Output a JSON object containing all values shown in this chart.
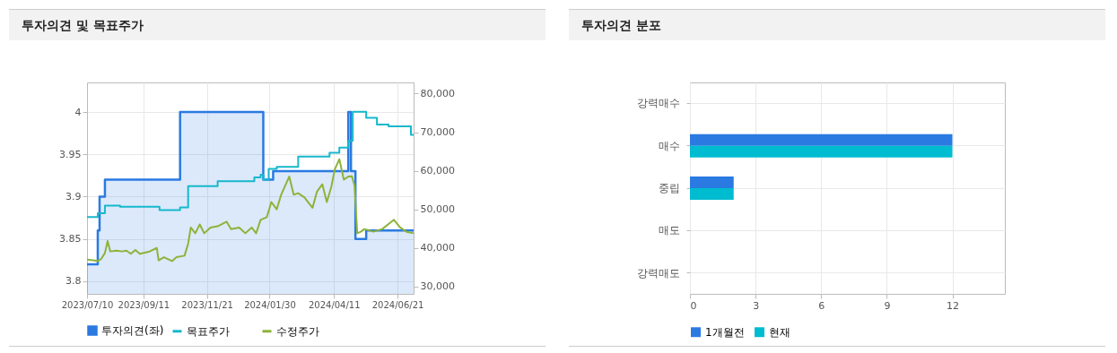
{
  "chart_data": [
    {
      "type": "line",
      "title": "투자의견 및 목표주가",
      "xlim": [
        "2023-07-10",
        "2024-07-09"
      ],
      "xticks": [
        {
          "value": "2023-07-10",
          "label": "2023/07/10"
        },
        {
          "value": "2023-09-11",
          "label": "2023/09/11"
        },
        {
          "value": "2023-11-21",
          "label": "2023/11/21"
        },
        {
          "value": "2024-01-30",
          "label": "2024/01/30"
        },
        {
          "value": "2024-04-11",
          "label": "2024/04/11"
        },
        {
          "value": "2024-06-21",
          "label": "2024/06/21"
        }
      ],
      "ylim": [
        3.785,
        4.035
      ],
      "yticks": [
        3.8,
        3.85,
        3.9,
        3.95,
        4
      ],
      "y2lim": [
        28100,
        82900
      ],
      "y2ticks": [
        {
          "value": 30000,
          "label": "30,000"
        },
        {
          "value": 40000,
          "label": "40,000"
        },
        {
          "value": 50000,
          "label": "50,000"
        },
        {
          "value": 60000,
          "label": "60,000"
        },
        {
          "value": 70000,
          "label": "70,000"
        },
        {
          "value": 80000,
          "label": "80,000"
        }
      ],
      "grid": true,
      "legend": "bottom",
      "series": [
        {
          "name": "투자의견(좌)",
          "type": "area",
          "color": "#2a7ae2",
          "x": [
            "2023-07-10",
            "2023-07-22",
            "2023-07-22",
            "2023-07-24",
            "2023-07-24",
            "2023-07-30",
            "2023-07-30",
            "2023-10-22",
            "2023-10-22",
            "2024-01-23",
            "2024-01-23",
            "2024-02-03",
            "2024-02-03",
            "2024-04-27",
            "2024-04-27",
            "2024-04-30",
            "2024-04-30",
            "2024-05-05",
            "2024-05-05",
            "2024-05-17",
            "2024-05-17",
            "2024-07-09"
          ],
          "values": [
            3.82,
            3.82,
            3.86,
            3.86,
            3.9,
            3.9,
            3.92,
            3.92,
            4,
            4,
            3.92,
            3.92,
            3.93,
            3.93,
            4,
            4,
            3.93,
            3.93,
            3.85,
            3.85,
            3.86,
            3.86
          ]
        },
        {
          "name": "목표주가",
          "type": "step",
          "axis": "y2",
          "color": "#17b8cc",
          "x": [
            "2023-07-10",
            "2023-07-22",
            "2023-07-30",
            "2023-08-16",
            "2023-09-29",
            "2023-10-22",
            "2023-10-31",
            "2023-12-03",
            "2024-01-13",
            "2024-01-20",
            "2024-01-23",
            "2024-01-29",
            "2024-02-07",
            "2024-03-02",
            "2024-04-06",
            "2024-04-17",
            "2024-04-27",
            "2024-05-02",
            "2024-05-17",
            "2024-05-29",
            "2024-06-11",
            "2024-07-06",
            "2024-07-09"
          ],
          "values": [
            48000,
            49000,
            51000,
            50700,
            49800,
            50500,
            56000,
            57300,
            58300,
            59000,
            57700,
            60500,
            61000,
            63700,
            64700,
            66000,
            67800,
            75300,
            73700,
            72000,
            71500,
            69300,
            69300
          ]
        },
        {
          "name": "수정주가",
          "type": "line",
          "axis": "y2",
          "color": "#8db33a",
          "x": [
            "2023-07-10",
            "2023-07-17",
            "2023-07-22",
            "2023-07-26",
            "2023-07-30",
            "2023-08-02",
            "2023-08-05",
            "2023-08-12",
            "2023-08-18",
            "2023-08-23",
            "2023-08-28",
            "2023-09-02",
            "2023-09-07",
            "2023-09-17",
            "2023-09-26",
            "2023-09-28",
            "2023-10-04",
            "2023-10-13",
            "2023-10-18",
            "2023-10-27",
            "2023-10-31",
            "2023-11-03",
            "2023-11-08",
            "2023-11-13",
            "2023-11-18",
            "2023-11-25",
            "2023-12-04",
            "2023-12-13",
            "2023-12-18",
            "2023-12-27",
            "2024-01-03",
            "2024-01-10",
            "2024-01-15",
            "2024-01-20",
            "2024-01-27",
            "2024-02-01",
            "2024-02-07",
            "2024-02-12",
            "2024-02-21",
            "2024-02-26",
            "2024-03-02",
            "2024-03-09",
            "2024-03-18",
            "2024-03-23",
            "2024-03-29",
            "2024-04-03",
            "2024-04-08",
            "2024-04-12",
            "2024-04-17",
            "2024-04-22",
            "2024-04-27",
            "2024-05-01",
            "2024-05-04",
            "2024-05-07",
            "2024-05-11",
            "2024-05-15",
            "2024-05-25",
            "2024-06-04",
            "2024-06-17",
            "2024-06-24",
            "2024-07-01",
            "2024-07-09"
          ],
          "values": [
            37000,
            36800,
            36600,
            37200,
            38700,
            41800,
            39100,
            39300,
            39100,
            39300,
            38500,
            39500,
            38500,
            39000,
            40000,
            36800,
            37600,
            36600,
            37600,
            38000,
            41100,
            45300,
            43800,
            46100,
            43800,
            45300,
            45700,
            46800,
            44900,
            45300,
            43800,
            45300,
            43800,
            47300,
            48000,
            51900,
            50000,
            53800,
            58500,
            53800,
            54200,
            53100,
            50400,
            54600,
            56500,
            51900,
            55800,
            60400,
            63000,
            57700,
            58500,
            58600,
            56200,
            43800,
            44200,
            44900,
            44200,
            44900,
            47300,
            45300,
            44200,
            43800
          ]
        }
      ]
    },
    {
      "type": "bar",
      "orientation": "horizontal",
      "title": "투자의견 분포",
      "categories": [
        "강력매수",
        "매수",
        "중립",
        "매도",
        "강력매도"
      ],
      "xlim": [
        0,
        14.4
      ],
      "xticks": [
        0,
        3,
        6,
        9,
        12
      ],
      "grid": true,
      "legend": "bottom",
      "series": [
        {
          "name": "1개월전",
          "color": "#2a7ae2",
          "values": [
            0,
            12,
            2,
            0,
            0
          ]
        },
        {
          "name": "현재",
          "color": "#00bcd0",
          "values": [
            0,
            12,
            2,
            0,
            0
          ]
        }
      ]
    }
  ]
}
